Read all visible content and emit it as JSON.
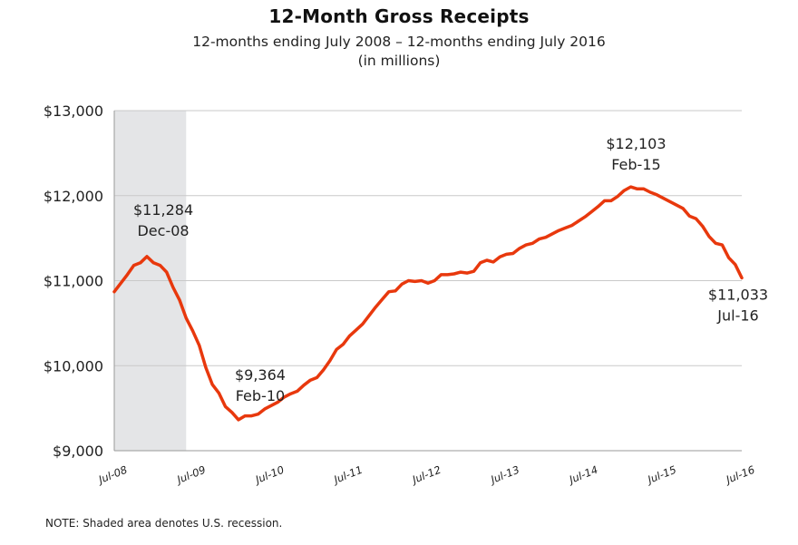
{
  "chart_data": {
    "type": "line",
    "title": "12-Month Gross Receipts",
    "subtitle_lines": [
      "12-months ending July 2008 – 12-months ending July 2016",
      "(in millions)"
    ],
    "xlabel": "",
    "ylabel": "",
    "ylim": [
      9000,
      13000
    ],
    "yticks": [
      9000,
      10000,
      11000,
      12000,
      13000
    ],
    "ytick_labels": [
      "$9,000",
      "$10,000",
      "$11,000",
      "$12,000",
      "$13,000"
    ],
    "xtick_labels": [
      "Jul-08",
      "Jul-09",
      "Jul-10",
      "Jul-11",
      "Jul-12",
      "Jul-13",
      "Jul-14",
      "Jul-15",
      "Jul-16"
    ],
    "grid": true,
    "line_color": "#e8380d",
    "shade_color": "#e4e5e7",
    "recession": [
      "2008-07",
      "2009-06"
    ],
    "series": [
      {
        "x": [
          "2008-07",
          "2008-08",
          "2008-09",
          "2008-10",
          "2008-11",
          "2008-12",
          "2009-01",
          "2009-02",
          "2009-03",
          "2009-04",
          "2009-05",
          "2009-06",
          "2009-07",
          "2009-08",
          "2009-09",
          "2009-10",
          "2009-11",
          "2009-12",
          "2010-01",
          "2010-02",
          "2010-03",
          "2010-04",
          "2010-05",
          "2010-06",
          "2010-07",
          "2010-08",
          "2010-09",
          "2010-10",
          "2010-11",
          "2010-12",
          "2011-01",
          "2011-02",
          "2011-03",
          "2011-04",
          "2011-05",
          "2011-06",
          "2011-07",
          "2011-08",
          "2011-09",
          "2011-10",
          "2011-11",
          "2011-12",
          "2012-01",
          "2012-02",
          "2012-03",
          "2012-04",
          "2012-05",
          "2012-06",
          "2012-07",
          "2012-08",
          "2012-09",
          "2012-10",
          "2012-11",
          "2012-12",
          "2013-01",
          "2013-02",
          "2013-03",
          "2013-04",
          "2013-05",
          "2013-06",
          "2013-07",
          "2013-08",
          "2013-09",
          "2013-10",
          "2013-11",
          "2013-12",
          "2014-01",
          "2014-02",
          "2014-03",
          "2014-04",
          "2014-05",
          "2014-06",
          "2014-07",
          "2014-08",
          "2014-09",
          "2014-10",
          "2014-11",
          "2014-12",
          "2015-01",
          "2015-02",
          "2015-03",
          "2015-04",
          "2015-05",
          "2015-06",
          "2015-07",
          "2015-08",
          "2015-09",
          "2015-10",
          "2015-11",
          "2015-12",
          "2016-01",
          "2016-02",
          "2016-03",
          "2016-04",
          "2016-05",
          "2016-06",
          "2016-07"
        ],
        "y": [
          10870,
          10970,
          11070,
          11180,
          11210,
          11284,
          11210,
          11180,
          11100,
          10920,
          10770,
          10560,
          10410,
          10240,
          9980,
          9780,
          9680,
          9520,
          9450,
          9364,
          9410,
          9410,
          9430,
          9490,
          9530,
          9570,
          9630,
          9670,
          9700,
          9770,
          9830,
          9860,
          9950,
          10060,
          10190,
          10250,
          10350,
          10420,
          10490,
          10590,
          10690,
          10780,
          10870,
          10880,
          10960,
          11000,
          10990,
          11000,
          10970,
          11000,
          11070,
          11070,
          11080,
          11100,
          11090,
          11110,
          11210,
          11240,
          11220,
          11280,
          11310,
          11320,
          11380,
          11420,
          11440,
          11490,
          11510,
          11550,
          11590,
          11620,
          11650,
          11700,
          11750,
          11810,
          11870,
          11940,
          11940,
          11990,
          12060,
          12103,
          12080,
          12080,
          12040,
          12010,
          11970,
          11930,
          11890,
          11850,
          11760,
          11730,
          11640,
          11520,
          11440,
          11420,
          11270,
          11190,
          11033
        ]
      }
    ],
    "annotations": [
      {
        "x": "2008-12",
        "value": "$11,284",
        "label": "Dec-08"
      },
      {
        "x": "2010-02",
        "value": "$9,364",
        "label": "Feb-10"
      },
      {
        "x": "2015-02",
        "value": "$12,103",
        "label": "Feb-15"
      },
      {
        "x": "2016-07",
        "value": "$11,033",
        "label": "Jul-16"
      }
    ]
  },
  "note": "NOTE: Shaded area denotes U.S. recession."
}
